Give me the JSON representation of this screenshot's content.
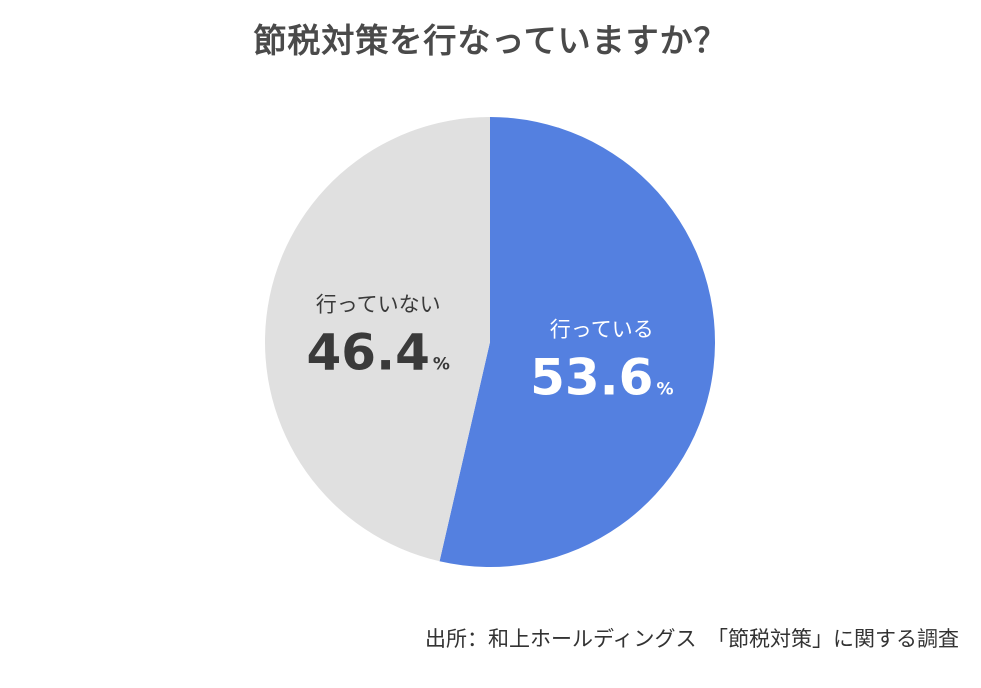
{
  "chart_data": {
    "type": "pie",
    "title": "節税対策を行なっていますか？",
    "slices": [
      {
        "label": "行っている",
        "value": 53.6,
        "display": "53.6",
        "unit": "%",
        "color": "#5480e0",
        "text_color": "#ffffff"
      },
      {
        "label": "行っていない",
        "value": 46.4,
        "display": "46.4",
        "unit": "%",
        "color": "#e0e0e0",
        "text_color": "#3a3a3a"
      }
    ],
    "start": "top",
    "direction": "clockwise"
  },
  "source": "出所：和上ホールディングス　「節税対策」に関する調査"
}
